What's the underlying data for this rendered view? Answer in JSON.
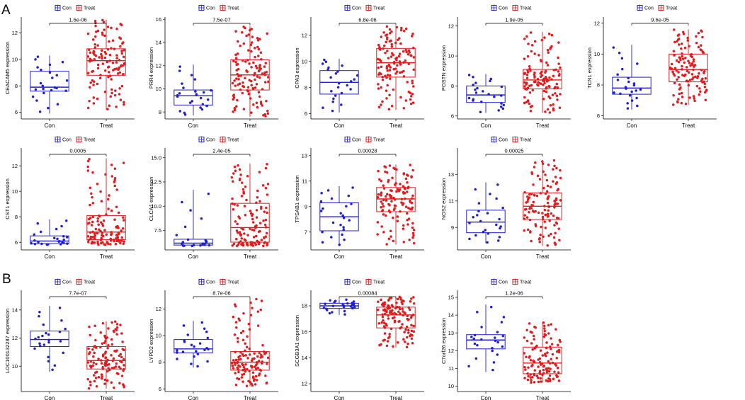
{
  "panel_labels": {
    "a": "A",
    "b": "B"
  },
  "colors": {
    "con": "#1f1fd0",
    "treat": "#e41a1c"
  },
  "chart_data": [
    {
      "type": "box",
      "panel": "A",
      "gene": "CEACAM5",
      "ylabel": "CEACAM5 expression",
      "categories": [
        "Con",
        "Treat"
      ],
      "legend": [
        "Con",
        "Treat"
      ],
      "pvalue": "1.6e-06",
      "ylim": [
        5.5,
        13.2
      ],
      "yticks": [
        6,
        8,
        10,
        12
      ],
      "con": {
        "min": 5.9,
        "q1": 7.6,
        "median": 7.9,
        "q3": 9.1,
        "max": 10.3,
        "n": 24
      },
      "treat": {
        "min": 6.2,
        "q1": 8.8,
        "median": 9.9,
        "q3": 10.8,
        "max": 13.0,
        "n": 120
      }
    },
    {
      "type": "box",
      "panel": "A",
      "gene": "PRR4",
      "ylabel": "PRR4 expression",
      "categories": [
        "Con",
        "Treat"
      ],
      "legend": [
        "Con",
        "Treat"
      ],
      "pvalue": "7.5e-07",
      "ylim": [
        7.4,
        16.2
      ],
      "yticks": [
        8,
        10,
        12,
        14,
        16
      ],
      "con": {
        "min": 7.7,
        "q1": 8.6,
        "median": 9.4,
        "q3": 9.9,
        "max": 12.1,
        "n": 24
      },
      "treat": {
        "min": 7.6,
        "q1": 9.9,
        "median": 11.2,
        "q3": 12.5,
        "max": 15.4,
        "n": 120
      }
    },
    {
      "type": "box",
      "panel": "A",
      "gene": "CPA3",
      "ylabel": "CPA3 expression",
      "categories": [
        "Con",
        "Treat"
      ],
      "legend": [
        "Con",
        "Treat"
      ],
      "pvalue": "6.8e-06",
      "ylim": [
        5.6,
        13.4
      ],
      "yticks": [
        6,
        8,
        10,
        12
      ],
      "con": {
        "min": 6.1,
        "q1": 7.5,
        "median": 8.4,
        "q3": 9.3,
        "max": 10.2,
        "n": 24
      },
      "treat": {
        "min": 6.3,
        "q1": 8.8,
        "median": 9.9,
        "q3": 11.0,
        "max": 12.7,
        "n": 120
      }
    },
    {
      "type": "box",
      "panel": "A",
      "gene": "POSTN",
      "ylabel": "POSTN expression",
      "categories": [
        "Con",
        "Treat"
      ],
      "legend": [
        "Con",
        "Treat"
      ],
      "pvalue": "1.9e-05",
      "ylim": [
        5.8,
        12.6
      ],
      "yticks": [
        6,
        8,
        10,
        12
      ],
      "con": {
        "min": 6.2,
        "q1": 6.9,
        "median": 7.4,
        "q3": 8.0,
        "max": 8.8,
        "n": 24
      },
      "treat": {
        "min": 6.2,
        "q1": 7.8,
        "median": 8.4,
        "q3": 9.1,
        "max": 11.6,
        "n": 120
      }
    },
    {
      "type": "box",
      "panel": "A",
      "gene": "TCN1",
      "ylabel": "TCN1 expression",
      "categories": [
        "Con",
        "Treat"
      ],
      "legend": [
        "Con",
        "Treat"
      ],
      "pvalue": "9.6e-05",
      "ylim": [
        5.8,
        12.4
      ],
      "yticks": [
        6,
        8,
        10,
        12
      ],
      "con": {
        "min": 6.4,
        "q1": 7.4,
        "median": 7.8,
        "q3": 8.5,
        "max": 10.6,
        "n": 24
      },
      "treat": {
        "min": 6.7,
        "q1": 8.2,
        "median": 9.0,
        "q3": 10.0,
        "max": 11.6,
        "n": 120
      }
    },
    {
      "type": "box",
      "panel": "A",
      "gene": "CST1",
      "ylabel": "CST1 expression",
      "categories": [
        "Con",
        "Treat"
      ],
      "legend": [
        "Con",
        "Treat"
      ],
      "pvalue": "0.0005",
      "ylim": [
        5.4,
        13.4
      ],
      "yticks": [
        6,
        8,
        10,
        12
      ],
      "con": {
        "min": 5.8,
        "q1": 5.9,
        "median": 6.1,
        "q3": 6.5,
        "max": 7.8,
        "n": 24
      },
      "treat": {
        "min": 5.8,
        "q1": 6.2,
        "median": 6.8,
        "q3": 8.1,
        "max": 12.6,
        "n": 120
      }
    },
    {
      "type": "box",
      "panel": "A",
      "gene": "CLCA1",
      "ylabel": "CLCA1 expression",
      "categories": [
        "Con",
        "Treat"
      ],
      "legend": [
        "Con",
        "Treat"
      ],
      "pvalue": "2.4e-05",
      "ylim": [
        5.5,
        16.0
      ],
      "yticks": [
        7.5,
        10.0,
        12.5,
        15.0
      ],
      "ytick_labels": [
        "7.5",
        "10.0",
        "12.5",
        "15.0"
      ],
      "con": {
        "min": 5.9,
        "q1": 6.0,
        "median": 6.2,
        "q3": 6.6,
        "max": 11.7,
        "n": 24
      },
      "treat": {
        "min": 5.9,
        "q1": 6.3,
        "median": 7.8,
        "q3": 10.3,
        "max": 14.4,
        "n": 120
      }
    },
    {
      "type": "box",
      "panel": "A",
      "gene": "TPSAB1",
      "ylabel": "TPSAB1 expression",
      "categories": [
        "Con",
        "Treat"
      ],
      "legend": [
        "Con",
        "Treat"
      ],
      "pvalue": "0.00028",
      "ylim": [
        5.6,
        13.6
      ],
      "yticks": [
        7,
        9,
        11,
        13
      ],
      "con": {
        "min": 5.9,
        "q1": 7.1,
        "median": 8.2,
        "q3": 9.3,
        "max": 10.6,
        "n": 24
      },
      "treat": {
        "min": 6.0,
        "q1": 8.6,
        "median": 9.6,
        "q3": 10.5,
        "max": 12.3,
        "n": 120
      }
    },
    {
      "type": "box",
      "panel": "A",
      "gene": "NOS2",
      "ylabel": "NOS2 expression",
      "categories": [
        "Con",
        "Treat"
      ],
      "legend": [
        "Con",
        "Treat"
      ],
      "pvalue": "0.00025",
      "ylim": [
        7.3,
        15.0
      ],
      "yticks": [
        9,
        11,
        13
      ],
      "con": {
        "min": 7.8,
        "q1": 8.6,
        "median": 9.4,
        "q3": 10.3,
        "max": 12.4,
        "n": 24
      },
      "treat": {
        "min": 7.6,
        "q1": 9.6,
        "median": 10.6,
        "q3": 11.6,
        "max": 14.1,
        "n": 120
      }
    },
    {
      "type": "box",
      "panel": "B",
      "gene": "LOC100132287",
      "ylabel": "LOC100132287 expression",
      "categories": [
        "Con",
        "Treat"
      ],
      "legend": [
        "Con",
        "Treat"
      ],
      "pvalue": "7.7e-07",
      "ylim": [
        8.2,
        15.4
      ],
      "yticks": [
        10,
        12,
        14
      ],
      "con": {
        "min": 9.6,
        "q1": 11.4,
        "median": 11.9,
        "q3": 12.5,
        "max": 14.3,
        "n": 24
      },
      "treat": {
        "min": 8.4,
        "q1": 9.8,
        "median": 10.4,
        "q3": 11.4,
        "max": 13.2,
        "n": 120
      }
    },
    {
      "type": "box",
      "panel": "B",
      "gene": "LYPD2",
      "ylabel": "LYPD2 expression",
      "categories": [
        "Con",
        "Treat"
      ],
      "legend": [
        "Con",
        "Treat"
      ],
      "pvalue": "8.7e-06",
      "ylim": [
        5.8,
        13.4
      ],
      "yticks": [
        6,
        8,
        10,
        12
      ],
      "con": {
        "min": 7.6,
        "q1": 8.7,
        "median": 9.0,
        "q3": 9.7,
        "max": 11.1,
        "n": 24
      },
      "treat": {
        "min": 6.2,
        "q1": 7.4,
        "median": 8.0,
        "q3": 8.8,
        "max": 12.8,
        "n": 120
      }
    },
    {
      "type": "box",
      "panel": "B",
      "gene": "SCGB3A1",
      "ylabel": "SCGB3A1 expression",
      "categories": [
        "Con",
        "Treat"
      ],
      "legend": [
        "Con",
        "Treat"
      ],
      "pvalue": "0.00084",
      "ylim": [
        11.4,
        19.2
      ],
      "yticks": [
        12,
        14,
        16,
        18
      ],
      "con": {
        "min": 17.3,
        "q1": 17.8,
        "median": 18.0,
        "q3": 18.2,
        "max": 18.5,
        "n": 24
      },
      "treat": {
        "min": 14.8,
        "q1": 16.3,
        "median": 17.3,
        "q3": 17.9,
        "max": 18.7,
        "n": 120
      }
    },
    {
      "type": "box",
      "panel": "B",
      "gene": "C7orf26",
      "ylabel": "C7orf26 expression",
      "categories": [
        "Con",
        "Treat"
      ],
      "legend": [
        "Con",
        "Treat"
      ],
      "pvalue": "1.2e-06",
      "ylim": [
        9.7,
        15.4
      ],
      "yticks": [
        10,
        11,
        12,
        13,
        14,
        15
      ],
      "con": {
        "min": 10.8,
        "q1": 12.1,
        "median": 12.6,
        "q3": 12.9,
        "max": 14.6,
        "n": 24
      },
      "treat": {
        "min": 10.2,
        "q1": 10.7,
        "median": 11.3,
        "q3": 12.2,
        "max": 13.6,
        "n": 120
      }
    }
  ]
}
